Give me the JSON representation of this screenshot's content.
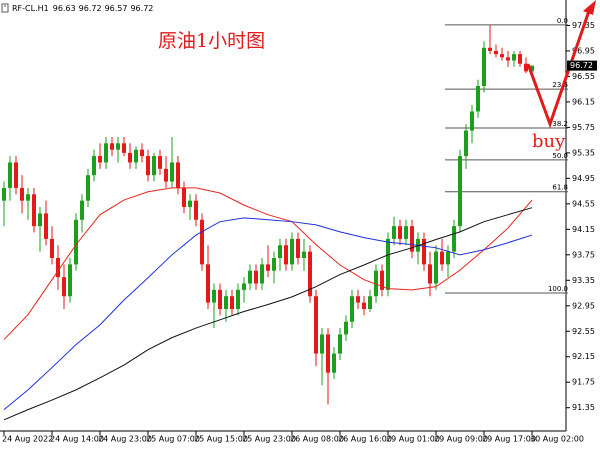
{
  "header": {
    "symbol": "RF-CL.H1",
    "quote": [
      96.63,
      96.72,
      96.57,
      96.72
    ]
  },
  "chart_data": {
    "type": "candlestick",
    "title": "原油1小时图",
    "annotation": "buy",
    "up_color": "#1d9e1d",
    "down_color": "#e31a1a",
    "categories": [
      "24 Aug 2022",
      null,
      null,
      null,
      null,
      null,
      null,
      null,
      "24 Aug 14:00",
      null,
      null,
      null,
      null,
      null,
      null,
      null,
      "24 Aug 23:00",
      null,
      null,
      null,
      null,
      null,
      null,
      null,
      "25 Aug 07:00",
      null,
      null,
      null,
      null,
      null,
      null,
      null,
      "25 Aug 15:00",
      null,
      null,
      null,
      null,
      null,
      null,
      null,
      "25 Aug 23:00",
      null,
      null,
      null,
      null,
      null,
      null,
      null,
      "26 Aug 08:00",
      null,
      null,
      null,
      null,
      null,
      null,
      null,
      "26 Aug 16:00",
      null,
      null,
      null,
      null,
      null,
      null,
      null,
      "29 Aug 01:00",
      null,
      null,
      null,
      null,
      null,
      null,
      null,
      "29 Aug 09:00",
      null,
      null,
      null,
      null,
      null,
      null,
      null,
      "29 Aug 17:00",
      null,
      null,
      null,
      null,
      null,
      null,
      null,
      "30 Aug 02:00"
    ],
    "open": [
      94.6,
      94.8,
      95.2,
      94.8,
      94.6,
      94.7,
      94.2,
      94.4,
      94.0,
      93.7,
      93.4,
      93.1,
      93.6,
      94.3,
      94.6,
      95.0,
      95.3,
      95.2,
      95.5,
      95.4,
      95.5,
      95.35,
      95.2,
      95.4,
      95.3,
      95.0,
      95.3,
      95.1,
      94.9,
      95.2,
      94.8,
      94.5,
      94.6,
      94.3,
      93.6,
      93.0,
      93.2,
      92.9,
      93.1,
      92.9,
      93.2,
      93.3,
      93.5,
      93.3,
      93.6,
      93.5,
      93.7,
      93.9,
      93.6,
      94.0,
      93.7,
      93.8,
      93.1,
      92.2,
      92.5,
      91.9,
      92.2,
      92.5,
      92.7,
      93.1,
      93.0,
      92.9,
      93.1,
      93.5,
      93.2,
      94.0,
      94.2,
      94.0,
      94.2,
      93.8,
      94.0,
      93.6,
      93.3,
      93.8,
      93.6,
      93.8,
      94.2,
      95.3,
      95.7,
      96.0,
      96.4,
      97.0,
      96.95,
      96.9,
      96.85,
      96.8,
      96.9,
      96.75,
      96.63
    ],
    "high": [
      94.9,
      95.3,
      95.3,
      95.0,
      94.8,
      94.8,
      94.5,
      94.6,
      94.2,
      93.9,
      93.6,
      93.7,
      94.4,
      94.7,
      95.1,
      95.4,
      95.5,
      95.6,
      95.6,
      95.6,
      95.6,
      95.5,
      95.45,
      95.5,
      95.4,
      95.35,
      95.4,
      95.3,
      95.6,
      95.3,
      94.9,
      94.7,
      94.7,
      94.4,
      93.9,
      93.3,
      93.3,
      93.2,
      93.2,
      93.3,
      93.4,
      93.6,
      93.6,
      93.7,
      93.9,
      93.8,
      94.0,
      94.0,
      94.1,
      94.1,
      94.0,
      93.9,
      93.2,
      92.6,
      92.6,
      92.3,
      92.6,
      92.8,
      93.2,
      93.2,
      93.1,
      93.2,
      93.6,
      93.6,
      94.1,
      94.35,
      94.3,
      94.3,
      94.3,
      94.1,
      94.1,
      93.8,
      93.9,
      94.0,
      93.9,
      94.3,
      95.4,
      95.8,
      96.1,
      96.5,
      97.1,
      97.35,
      97.05,
      97.0,
      96.95,
      96.95,
      96.95,
      96.85,
      96.72
    ],
    "low": [
      94.2,
      94.6,
      94.7,
      94.4,
      94.3,
      94.1,
      93.8,
      93.9,
      93.6,
      93.2,
      92.9,
      93.0,
      93.5,
      94.1,
      94.5,
      94.9,
      95.1,
      95.1,
      95.3,
      95.2,
      95.3,
      95.1,
      95.1,
      95.2,
      94.9,
      94.9,
      95.0,
      94.8,
      94.8,
      94.7,
      94.4,
      94.3,
      94.2,
      93.5,
      92.9,
      92.6,
      92.8,
      92.7,
      92.8,
      92.8,
      93.0,
      93.2,
      93.2,
      93.2,
      93.4,
      93.3,
      93.5,
      93.5,
      93.5,
      93.6,
      93.5,
      93.0,
      92.0,
      91.7,
      91.4,
      91.8,
      92.1,
      92.4,
      92.6,
      92.9,
      92.8,
      92.85,
      93.0,
      93.1,
      93.1,
      93.9,
      93.9,
      93.9,
      93.7,
      93.6,
      93.5,
      93.1,
      93.2,
      93.5,
      93.4,
      93.7,
      94.1,
      95.1,
      95.5,
      95.9,
      96.3,
      96.9,
      96.85,
      96.8,
      96.7,
      96.7,
      96.7,
      96.6,
      96.57
    ],
    "close": [
      94.8,
      95.2,
      94.8,
      94.6,
      94.7,
      94.2,
      94.4,
      94.0,
      93.7,
      93.4,
      93.1,
      93.6,
      94.3,
      94.6,
      95.0,
      95.3,
      95.2,
      95.5,
      95.4,
      95.5,
      95.35,
      95.2,
      95.4,
      95.3,
      95.0,
      95.3,
      95.1,
      94.9,
      95.2,
      94.8,
      94.5,
      94.6,
      94.3,
      93.6,
      93.0,
      93.2,
      92.9,
      93.1,
      92.9,
      93.2,
      93.3,
      93.5,
      93.3,
      93.6,
      93.5,
      93.7,
      93.9,
      93.6,
      94.0,
      93.7,
      93.8,
      93.1,
      92.2,
      92.5,
      91.9,
      92.2,
      92.5,
      92.7,
      93.1,
      93.0,
      92.9,
      93.1,
      93.5,
      93.2,
      94.0,
      94.2,
      94.0,
      94.2,
      93.8,
      94.0,
      93.6,
      93.3,
      93.8,
      93.6,
      93.8,
      94.2,
      95.3,
      95.7,
      96.0,
      96.4,
      97.0,
      96.95,
      96.9,
      96.85,
      96.8,
      96.9,
      96.75,
      96.63,
      96.72
    ],
    "lines": [
      {
        "color": "#e8241c",
        "x": [
          0,
          4,
          8,
          12,
          16,
          20,
          24,
          28,
          32,
          36,
          40,
          44,
          48,
          52,
          56,
          60,
          64,
          68,
          72,
          76,
          80,
          84,
          88
        ],
        "values": [
          92.42,
          92.81,
          93.36,
          93.91,
          94.38,
          94.61,
          94.74,
          94.8,
          94.8,
          94.72,
          94.53,
          94.38,
          94.27,
          93.91,
          93.59,
          93.36,
          93.22,
          93.2,
          93.25,
          93.51,
          93.83,
          94.17,
          94.61
        ]
      },
      {
        "color": "#1f2ee0",
        "x": [
          0,
          4,
          8,
          12,
          16,
          20,
          24,
          28,
          32,
          36,
          40,
          44,
          48,
          52,
          56,
          60,
          64,
          68,
          72,
          76,
          80,
          84,
          88
        ],
        "values": [
          91.32,
          91.63,
          91.98,
          92.34,
          92.65,
          93.04,
          93.39,
          93.75,
          94.06,
          94.27,
          94.33,
          94.3,
          94.27,
          94.22,
          94.11,
          94.02,
          93.95,
          93.91,
          93.86,
          93.75,
          93.83,
          93.94,
          94.06
        ]
      },
      {
        "color": "#111111",
        "x": [
          0,
          4,
          8,
          12,
          16,
          20,
          24,
          28,
          32,
          36,
          40,
          44,
          48,
          52,
          56,
          60,
          64,
          68,
          72,
          76,
          80,
          84,
          88
        ],
        "values": [
          91.16,
          91.32,
          91.47,
          91.63,
          91.82,
          92.02,
          92.26,
          92.45,
          92.6,
          92.73,
          92.86,
          92.97,
          93.09,
          93.25,
          93.44,
          93.59,
          93.75,
          93.86,
          93.99,
          94.11,
          94.27,
          94.38,
          94.49
        ]
      }
    ],
    "fib_levels": [
      {
        "label": "0.0",
        "price": 97.36
      },
      {
        "label": "23.6",
        "price": 96.35
      },
      {
        "label": "38.2",
        "price": 95.74
      },
      {
        "label": "50.0",
        "price": 95.24
      },
      {
        "label": "61.8",
        "price": 94.74
      },
      {
        "label": "100.0",
        "price": 93.15
      }
    ],
    "ylim": [
      91.0,
      97.75
    ],
    "yticks": [
      97.35,
      96.95,
      96.55,
      96.15,
      95.75,
      95.35,
      94.95,
      94.55,
      94.15,
      93.75,
      93.35,
      92.95,
      92.55,
      92.15,
      91.75,
      91.35
    ]
  }
}
